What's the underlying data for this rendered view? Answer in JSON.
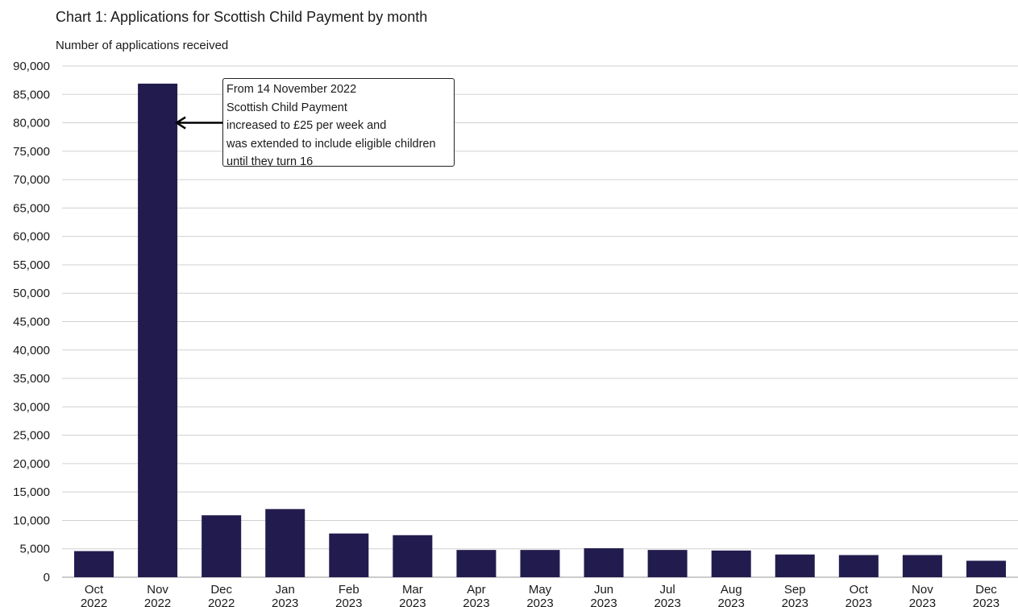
{
  "chart_data": {
    "type": "bar",
    "title": "Chart 1: Applications for Scottish Child Payment by month",
    "ylabel": "Number of applications received",
    "xlabel": "",
    "ylim": [
      0,
      90000
    ],
    "yticks": [
      0,
      5000,
      10000,
      15000,
      20000,
      25000,
      30000,
      35000,
      40000,
      45000,
      50000,
      55000,
      60000,
      65000,
      70000,
      75000,
      80000,
      85000,
      90000
    ],
    "ytick_labels": [
      "0",
      "5,000",
      "10,000",
      "15,000",
      "20,000",
      "25,000",
      "30,000",
      "35,000",
      "40,000",
      "45,000",
      "50,000",
      "55,000",
      "60,000",
      "65,000",
      "70,000",
      "75,000",
      "80,000",
      "85,000",
      "90,000"
    ],
    "grid": "horizontal",
    "bar_color": "#221C4E",
    "grid_color": "#D0D0D0",
    "categories": [
      {
        "month": "Oct",
        "year": "2022"
      },
      {
        "month": "Nov",
        "year": "2022"
      },
      {
        "month": "Dec",
        "year": "2022"
      },
      {
        "month": "Jan",
        "year": "2023"
      },
      {
        "month": "Feb",
        "year": "2023"
      },
      {
        "month": "Mar",
        "year": "2023"
      },
      {
        "month": "Apr",
        "year": "2023"
      },
      {
        "month": "May",
        "year": "2023"
      },
      {
        "month": "Jun",
        "year": "2023"
      },
      {
        "month": "Jul",
        "year": "2023"
      },
      {
        "month": "Aug",
        "year": "2023"
      },
      {
        "month": "Sep",
        "year": "2023"
      },
      {
        "month": "Oct",
        "year": "2023"
      },
      {
        "month": "Nov",
        "year": "2023"
      },
      {
        "month": "Dec",
        "year": "2023"
      }
    ],
    "values": [
      4600,
      86900,
      10900,
      12000,
      7700,
      7400,
      4800,
      4800,
      5100,
      4800,
      4700,
      4000,
      3900,
      3900,
      2900
    ],
    "annotation": {
      "lines": [
        "From 14 November 2022",
        "Scottish Child Payment",
        "increased to £25 per week and",
        "was extended to include eligible children",
        "until they turn 16"
      ],
      "target_category_index": 1,
      "arrow_value": 80000
    }
  }
}
